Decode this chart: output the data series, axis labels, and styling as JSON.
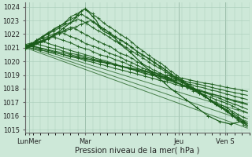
{
  "xlabel": "Pression niveau de la mer( hPa )",
  "ylim": [
    1014.8,
    1024.3
  ],
  "yticks": [
    1015,
    1016,
    1017,
    1018,
    1019,
    1020,
    1021,
    1022,
    1023,
    1024
  ],
  "xlim": [
    0,
    120
  ],
  "xtick_positions": [
    2,
    32,
    82,
    107
  ],
  "xtick_labels": [
    "LunMer",
    "Mar",
    "Jeu",
    "Ven S"
  ],
  "bg_color": "#cde8d8",
  "grid_color": "#a8ccb8",
  "line_color": "#1a5c1a",
  "line_width": 0.8,
  "marker_size": 2.5
}
